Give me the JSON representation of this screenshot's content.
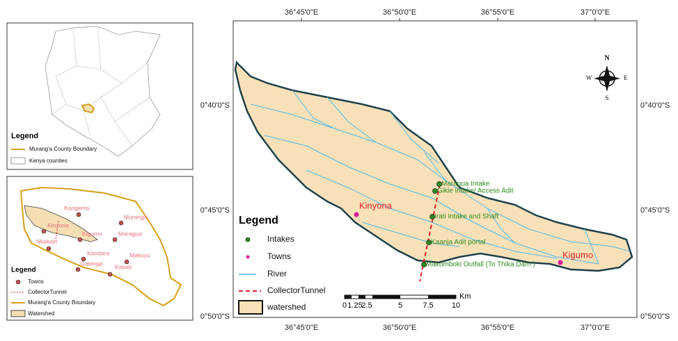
{
  "main_map": {
    "longitude_labels": [
      "36°45'0\"E",
      "36°50'0\"E",
      "36°55'0\"E",
      "37°0'0\"E"
    ],
    "latitude_labels": [
      "0°40'0\"S",
      "0°45'0\"S",
      "0°50'0\"S"
    ],
    "intakes": [
      "Maragua Intake",
      "Gikie Intake/ Access Adit",
      "Irati Intake and Shaft",
      "Kaanja Adit portal",
      "Makomboki Outfall (To Thika Dam )"
    ],
    "towns": [
      "Kinyona",
      "Kigumo"
    ],
    "legend": {
      "title": "Legend",
      "items": [
        "Intakes",
        "Towns",
        "River",
        "CollectorTunnel",
        "watershed"
      ]
    },
    "scale_bar": {
      "labels": [
        "0",
        "1.25",
        "2.5",
        "5",
        "7.5",
        "10"
      ],
      "unit": "Km"
    },
    "north_arrow": {
      "n": "N",
      "s": "S",
      "e": "E",
      "w": "W"
    }
  },
  "kenya_inset": {
    "legend": {
      "title": "Legend",
      "items": [
        "Murang'a County Boundary",
        "Kenya counties"
      ]
    }
  },
  "county_inset": {
    "towns": [
      "Kangema",
      "Muranga",
      "Kinyona",
      "Kigumo",
      "Maragua",
      "Nkakairi",
      "Kandara",
      "Gatanga",
      "Kabati",
      "Makuyu"
    ],
    "legend": {
      "title": "Legend",
      "items": [
        "Towns",
        "CollectorTunnel",
        "Murang'a County Boundary",
        "Watershed"
      ]
    }
  }
}
